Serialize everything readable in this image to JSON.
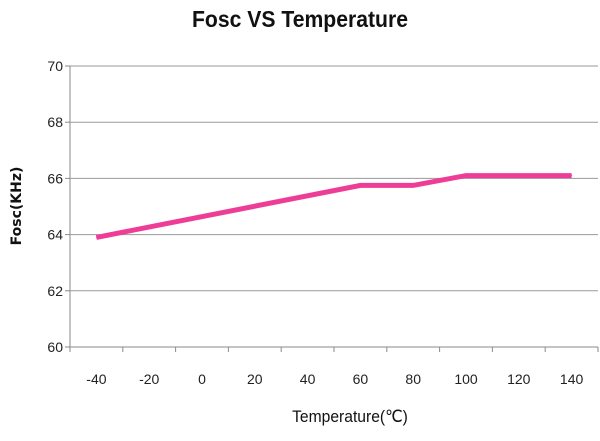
{
  "chart_data": {
    "type": "line",
    "title": "Fosc VS Temperature",
    "xlabel": "Temperature(℃)",
    "ylabel": "Fosc(KHz)",
    "categories": [
      "-40",
      "-20",
      "0",
      "20",
      "40",
      "60",
      "80",
      "100",
      "120",
      "140"
    ],
    "x_ticks": [
      "-40",
      "-20",
      "0",
      "20",
      "40",
      "60",
      "80",
      "100",
      "120",
      "140"
    ],
    "y_ticks": [
      "60",
      "62",
      "64",
      "66",
      "68",
      "70"
    ],
    "ylim": [
      60,
      70
    ],
    "grid": "horizontal",
    "legend": "none",
    "series": [
      {
        "x": [
          -40,
          60,
          80,
          100,
          140
        ],
        "values": [
          63.9,
          65.75,
          65.75,
          66.1,
          66.1
        ],
        "color": "#ee3d96"
      }
    ]
  }
}
